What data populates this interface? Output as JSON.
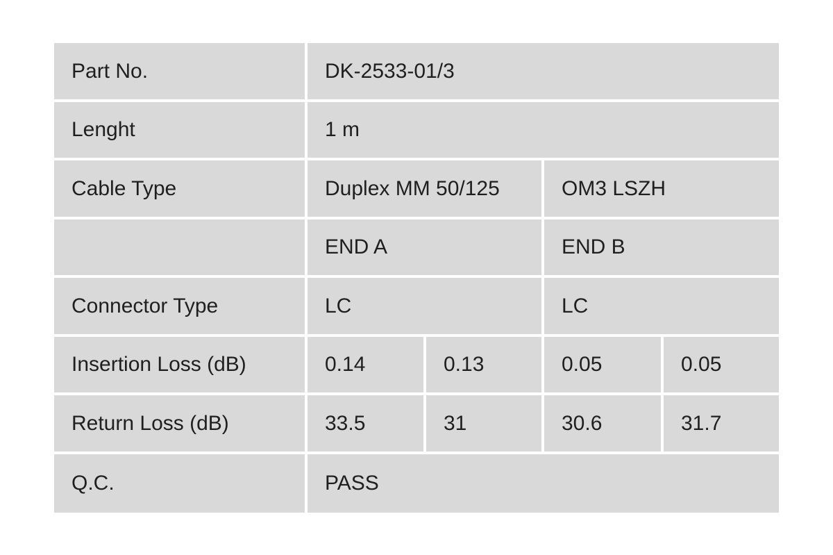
{
  "table": {
    "rows": [
      {
        "label": "Part No.",
        "cells": [
          "DK-2533-01/3"
        ]
      },
      {
        "label": "Lenght",
        "cells": [
          "1 m"
        ]
      },
      {
        "label": "Cable Type",
        "cells": [
          "Duplex MM 50/125",
          "OM3 LSZH"
        ]
      },
      {
        "cells": [
          "END A",
          "END B"
        ]
      },
      {
        "label": "Connector Type",
        "cells": [
          "LC",
          "LC"
        ]
      },
      {
        "label": "Insertion Loss (dB)",
        "cells": [
          "0.14",
          "0.13",
          "0.05",
          "0.05"
        ]
      },
      {
        "label": "Return Loss (dB)",
        "cells": [
          "33.5",
          "31",
          "30.6",
          "31.7"
        ]
      },
      {
        "label": "Q.C.",
        "cells": [
          "PASS"
        ]
      }
    ]
  }
}
